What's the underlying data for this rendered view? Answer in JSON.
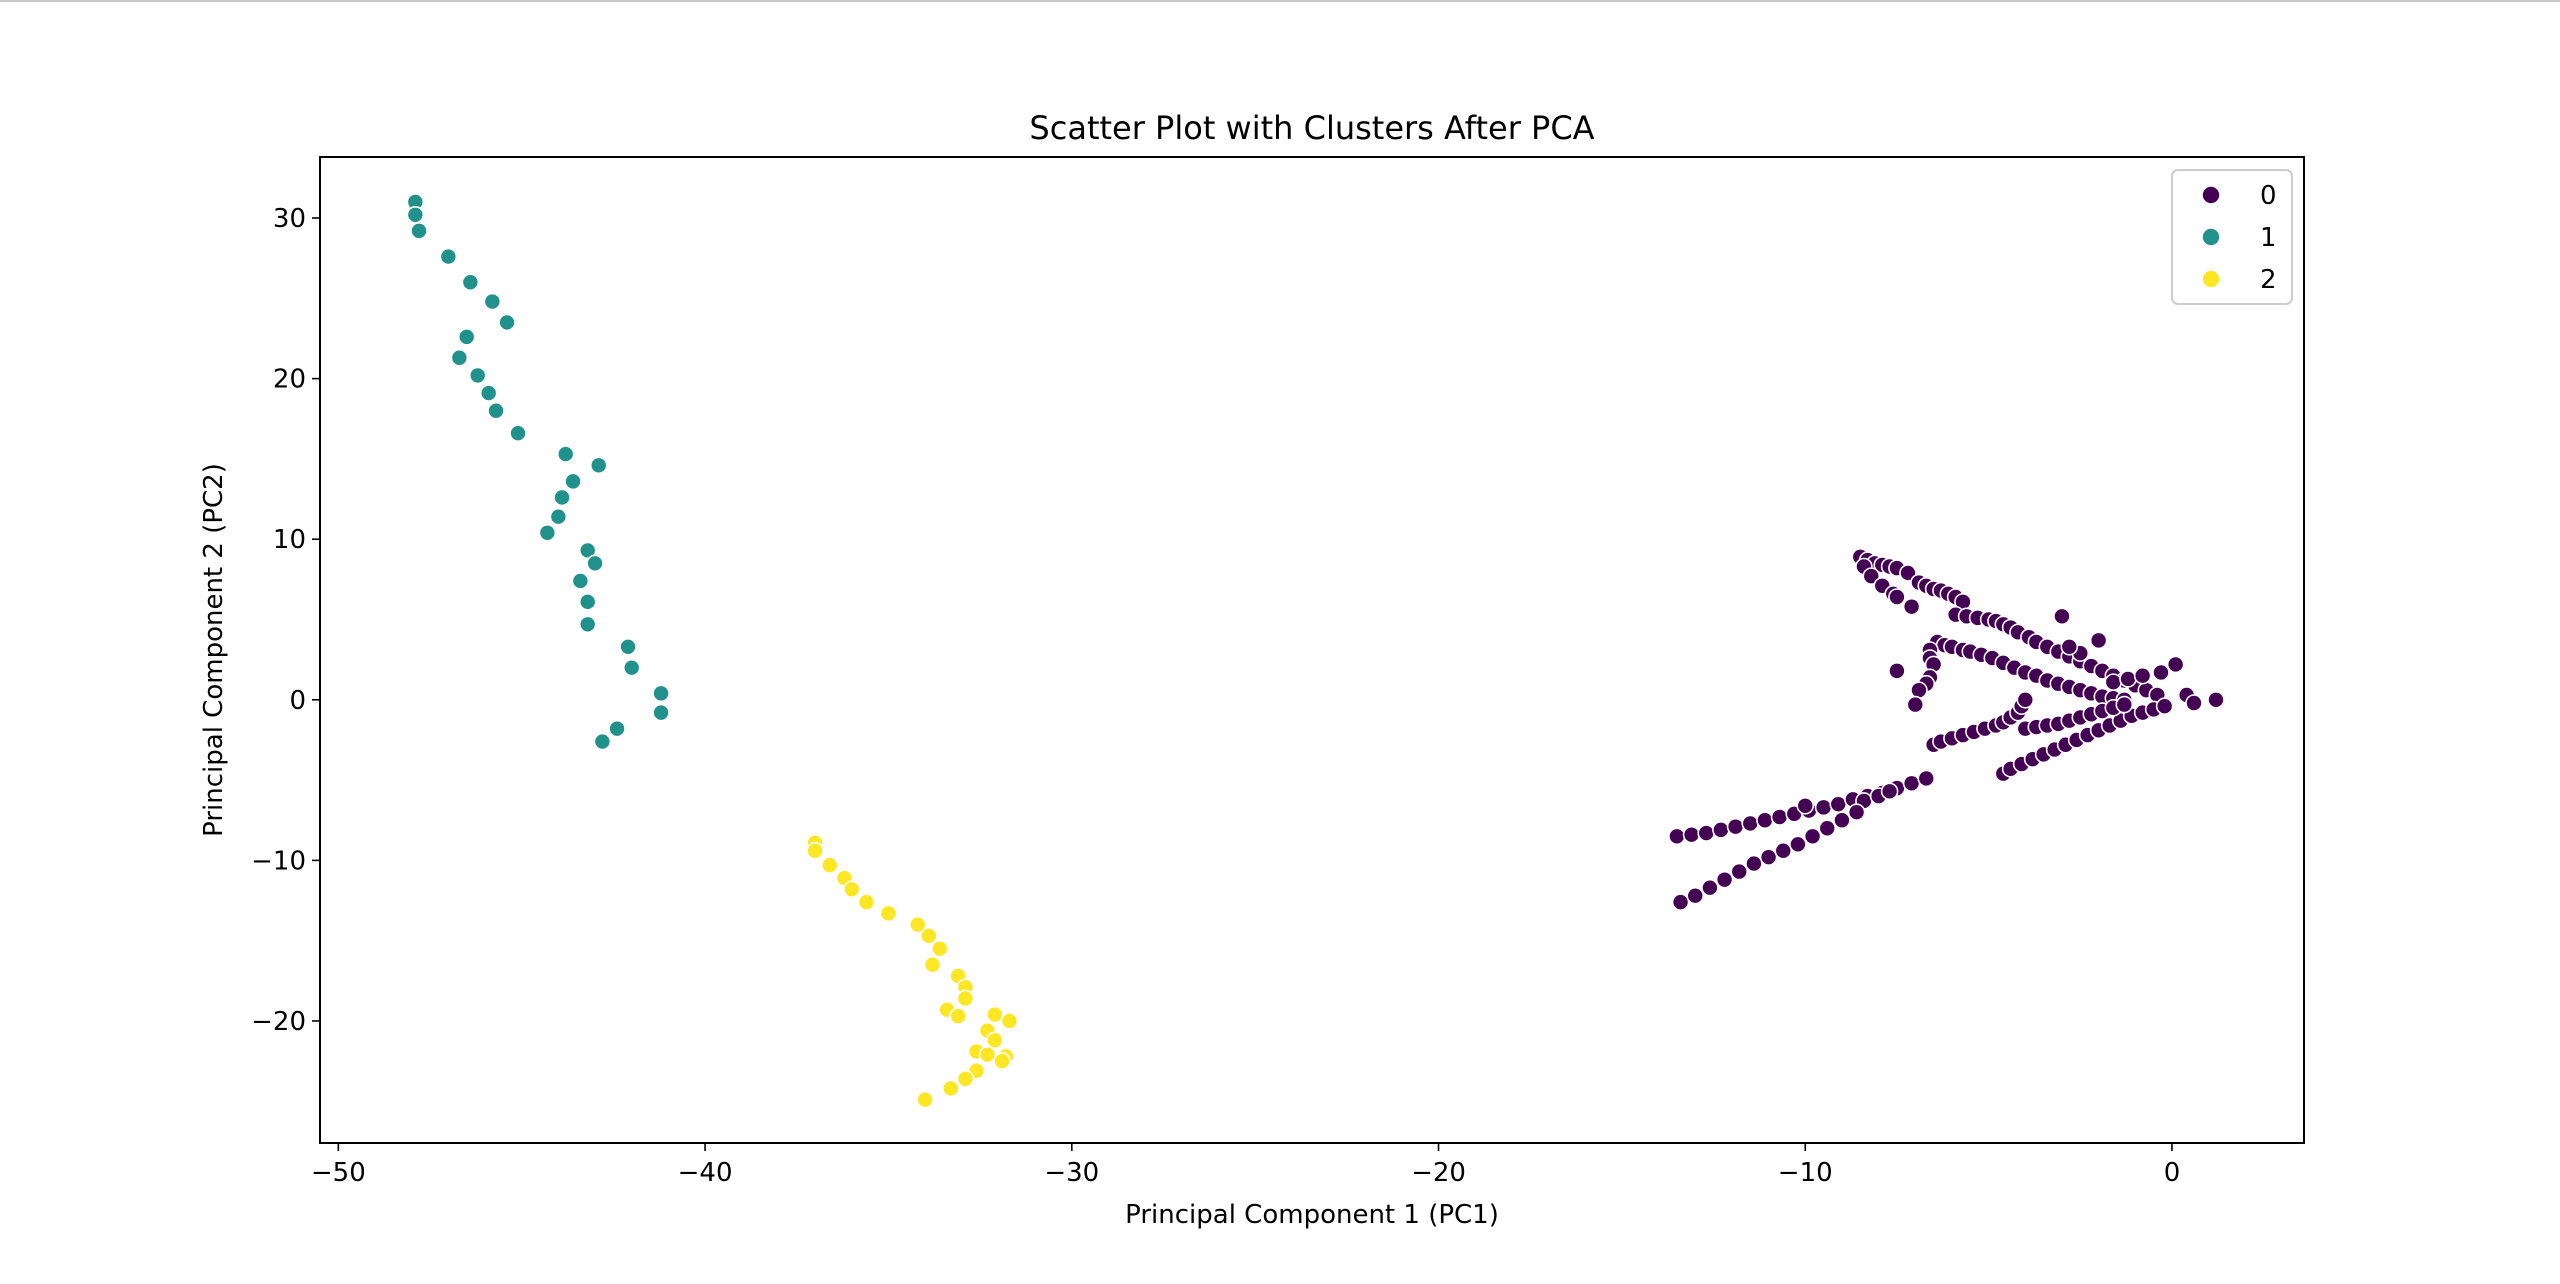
{
  "chart_data": {
    "type": "scatter",
    "title": "Scatter Plot with Clusters After PCA",
    "xlabel": "Principal Component 1 (PC1)",
    "ylabel": "Principal Component 2 (PC2)",
    "xlim": [
      -50.5,
      3.6
    ],
    "ylim": [
      -27.6,
      33.8
    ],
    "xticks": [
      -50,
      -40,
      -30,
      -20,
      -10,
      0
    ],
    "yticks": [
      -20,
      -10,
      0,
      10,
      20,
      30
    ],
    "xtick_labels": [
      "−50",
      "−40",
      "−30",
      "−20",
      "−10",
      "0"
    ],
    "ytick_labels": [
      "−20",
      "−10",
      "0",
      "10",
      "20",
      "30"
    ],
    "grid": false,
    "legend": {
      "position": "top-right",
      "entries": [
        "0",
        "1",
        "2"
      ]
    },
    "colors": {
      "0": "#440154",
      "1": "#21918c",
      "2": "#fde725"
    },
    "series": [
      {
        "name": "1",
        "points": [
          [
            -47.9,
            31.0
          ],
          [
            -47.9,
            30.2
          ],
          [
            -47.8,
            29.2
          ],
          [
            -47.0,
            27.6
          ],
          [
            -46.4,
            26.0
          ],
          [
            -45.8,
            24.8
          ],
          [
            -45.4,
            23.5
          ],
          [
            -46.5,
            22.6
          ],
          [
            -46.7,
            21.3
          ],
          [
            -46.2,
            20.2
          ],
          [
            -45.9,
            19.1
          ],
          [
            -45.7,
            18.0
          ],
          [
            -45.1,
            16.6
          ],
          [
            -43.8,
            15.3
          ],
          [
            -42.9,
            14.6
          ],
          [
            -43.6,
            13.6
          ],
          [
            -43.9,
            12.6
          ],
          [
            -44.0,
            11.4
          ],
          [
            -44.3,
            10.4
          ],
          [
            -43.2,
            9.3
          ],
          [
            -43.0,
            8.5
          ],
          [
            -43.4,
            7.4
          ],
          [
            -43.2,
            6.1
          ],
          [
            -43.2,
            4.7
          ],
          [
            -42.1,
            3.3
          ],
          [
            -42.0,
            2.0
          ],
          [
            -41.2,
            0.4
          ],
          [
            -41.2,
            -0.8
          ],
          [
            -42.4,
            -1.8
          ],
          [
            -42.8,
            -2.6
          ]
        ]
      },
      {
        "name": "2",
        "points": [
          [
            -37.0,
            -8.9
          ],
          [
            -37.0,
            -9.4
          ],
          [
            -36.6,
            -10.3
          ],
          [
            -36.2,
            -11.1
          ],
          [
            -36.0,
            -11.8
          ],
          [
            -35.6,
            -12.6
          ],
          [
            -35.0,
            -13.3
          ],
          [
            -34.2,
            -14.0
          ],
          [
            -33.9,
            -14.7
          ],
          [
            -33.6,
            -15.5
          ],
          [
            -33.8,
            -16.5
          ],
          [
            -33.1,
            -17.2
          ],
          [
            -32.9,
            -17.9
          ],
          [
            -32.9,
            -18.6
          ],
          [
            -33.4,
            -19.3
          ],
          [
            -33.1,
            -19.7
          ],
          [
            -32.1,
            -19.6
          ],
          [
            -31.7,
            -20.0
          ],
          [
            -32.3,
            -20.6
          ],
          [
            -32.1,
            -21.2
          ],
          [
            -32.6,
            -21.9
          ],
          [
            -32.3,
            -22.1
          ],
          [
            -31.8,
            -22.2
          ],
          [
            -31.9,
            -22.5
          ],
          [
            -32.6,
            -23.1
          ],
          [
            -32.9,
            -23.6
          ],
          [
            -33.3,
            -24.2
          ],
          [
            -34.0,
            -24.9
          ]
        ]
      },
      {
        "name": "0",
        "points": [
          [
            -8.5,
            8.9
          ],
          [
            -8.3,
            8.7
          ],
          [
            -8.1,
            8.5
          ],
          [
            -7.9,
            8.4
          ],
          [
            -7.7,
            8.3
          ],
          [
            -7.5,
            8.2
          ],
          [
            -7.2,
            7.9
          ],
          [
            -6.9,
            7.3
          ],
          [
            -6.7,
            7.1
          ],
          [
            -6.5,
            6.9
          ],
          [
            -6.3,
            6.8
          ],
          [
            -6.1,
            6.6
          ],
          [
            -5.9,
            6.4
          ],
          [
            -5.7,
            6.1
          ],
          [
            -5.9,
            5.3
          ],
          [
            -5.6,
            5.2
          ],
          [
            -5.3,
            5.1
          ],
          [
            -5.0,
            5.0
          ],
          [
            -4.8,
            4.9
          ],
          [
            -4.6,
            4.7
          ],
          [
            -4.4,
            4.5
          ],
          [
            -4.2,
            4.2
          ],
          [
            -3.9,
            3.9
          ],
          [
            -3.7,
            3.6
          ],
          [
            -3.4,
            3.3
          ],
          [
            -3.1,
            3.0
          ],
          [
            -2.8,
            2.7
          ],
          [
            -2.5,
            2.4
          ],
          [
            -2.2,
            2.1
          ],
          [
            -1.9,
            1.8
          ],
          [
            -1.6,
            1.5
          ],
          [
            -1.3,
            1.2
          ],
          [
            -1.0,
            0.9
          ],
          [
            -0.7,
            0.6
          ],
          [
            -0.4,
            0.3
          ],
          [
            -8.4,
            8.3
          ],
          [
            -8.2,
            7.7
          ],
          [
            -7.9,
            7.1
          ],
          [
            -7.6,
            6.6
          ],
          [
            -7.1,
            5.8
          ],
          [
            -7.5,
            6.4
          ],
          [
            -6.4,
            3.6
          ],
          [
            -6.2,
            3.4
          ],
          [
            -6.0,
            3.3
          ],
          [
            -5.7,
            3.1
          ],
          [
            -5.5,
            3.0
          ],
          [
            -5.2,
            2.8
          ],
          [
            -4.9,
            2.6
          ],
          [
            -4.6,
            2.3
          ],
          [
            -4.3,
            2.0
          ],
          [
            -4.0,
            1.7
          ],
          [
            -3.7,
            1.5
          ],
          [
            -3.4,
            1.2
          ],
          [
            -3.1,
            1.0
          ],
          [
            -2.8,
            0.8
          ],
          [
            -2.5,
            0.6
          ],
          [
            -2.2,
            0.4
          ],
          [
            -1.9,
            0.2
          ],
          [
            -1.6,
            0.1
          ],
          [
            -1.3,
            0.0
          ],
          [
            -6.6,
            3.1
          ],
          [
            -6.6,
            2.6
          ],
          [
            -6.5,
            2.2
          ],
          [
            -6.6,
            1.4
          ],
          [
            -6.7,
            1.0
          ],
          [
            -6.9,
            0.6
          ],
          [
            -7.0,
            -0.3
          ],
          [
            -7.5,
            1.8
          ],
          [
            -3.0,
            5.2
          ],
          [
            -6.5,
            -2.8
          ],
          [
            -6.3,
            -2.6
          ],
          [
            -6.0,
            -2.4
          ],
          [
            -5.7,
            -2.2
          ],
          [
            -5.4,
            -2.0
          ],
          [
            -5.1,
            -1.8
          ],
          [
            -4.8,
            -1.6
          ],
          [
            -4.6,
            -1.4
          ],
          [
            -4.4,
            -1.1
          ],
          [
            -4.2,
            -0.8
          ],
          [
            -4.1,
            -0.4
          ],
          [
            -4.0,
            0.0
          ],
          [
            -4.6,
            -4.6
          ],
          [
            -4.4,
            -4.3
          ],
          [
            -4.1,
            -4.0
          ],
          [
            -3.8,
            -3.7
          ],
          [
            -3.5,
            -3.4
          ],
          [
            -3.2,
            -3.1
          ],
          [
            -2.9,
            -2.8
          ],
          [
            -2.6,
            -2.5
          ],
          [
            -2.3,
            -2.2
          ],
          [
            -2.0,
            -1.9
          ],
          [
            -1.7,
            -1.6
          ],
          [
            -1.4,
            -1.3
          ],
          [
            -1.1,
            -1.0
          ],
          [
            -0.8,
            -0.8
          ],
          [
            -0.5,
            -0.6
          ],
          [
            -0.2,
            -0.4
          ],
          [
            -4.0,
            -1.8
          ],
          [
            -3.7,
            -1.7
          ],
          [
            -3.4,
            -1.6
          ],
          [
            -3.1,
            -1.5
          ],
          [
            -2.8,
            -1.3
          ],
          [
            -2.5,
            -1.1
          ],
          [
            -2.2,
            -0.9
          ],
          [
            -1.9,
            -0.7
          ],
          [
            -1.6,
            -0.5
          ],
          [
            -1.3,
            -0.3
          ],
          [
            -2.0,
            3.7
          ],
          [
            -1.6,
            1.1
          ],
          [
            -1.2,
            1.3
          ],
          [
            -0.8,
            1.5
          ],
          [
            -0.3,
            1.7
          ],
          [
            0.1,
            2.2
          ],
          [
            0.4,
            0.3
          ],
          [
            0.6,
            -0.2
          ],
          [
            1.2,
            0.0
          ],
          [
            -2.5,
            2.9
          ],
          [
            -2.8,
            3.3
          ],
          [
            -13.5,
            -8.5
          ],
          [
            -13.1,
            -8.4
          ],
          [
            -12.7,
            -8.3
          ],
          [
            -12.3,
            -8.1
          ],
          [
            -11.9,
            -7.9
          ],
          [
            -11.5,
            -7.7
          ],
          [
            -11.1,
            -7.5
          ],
          [
            -10.7,
            -7.3
          ],
          [
            -10.3,
            -7.1
          ],
          [
            -9.9,
            -6.9
          ],
          [
            -9.5,
            -6.7
          ],
          [
            -9.1,
            -6.5
          ],
          [
            -8.7,
            -6.2
          ],
          [
            -8.3,
            -6.0
          ],
          [
            -7.9,
            -5.8
          ],
          [
            -7.5,
            -5.5
          ],
          [
            -7.1,
            -5.2
          ],
          [
            -6.7,
            -4.9
          ],
          [
            -8.4,
            -6.3
          ],
          [
            -8.0,
            -6.0
          ],
          [
            -7.7,
            -5.7
          ],
          [
            -13.4,
            -12.6
          ],
          [
            -13.0,
            -12.2
          ],
          [
            -12.6,
            -11.7
          ],
          [
            -12.2,
            -11.2
          ],
          [
            -11.8,
            -10.7
          ],
          [
            -11.4,
            -10.2
          ],
          [
            -11.0,
            -9.8
          ],
          [
            -10.6,
            -9.4
          ],
          [
            -10.2,
            -9.0
          ],
          [
            -9.8,
            -8.5
          ],
          [
            -9.4,
            -8.0
          ],
          [
            -9.0,
            -7.5
          ],
          [
            -8.6,
            -7.0
          ],
          [
            -10.0,
            -6.6
          ]
        ]
      }
    ]
  }
}
